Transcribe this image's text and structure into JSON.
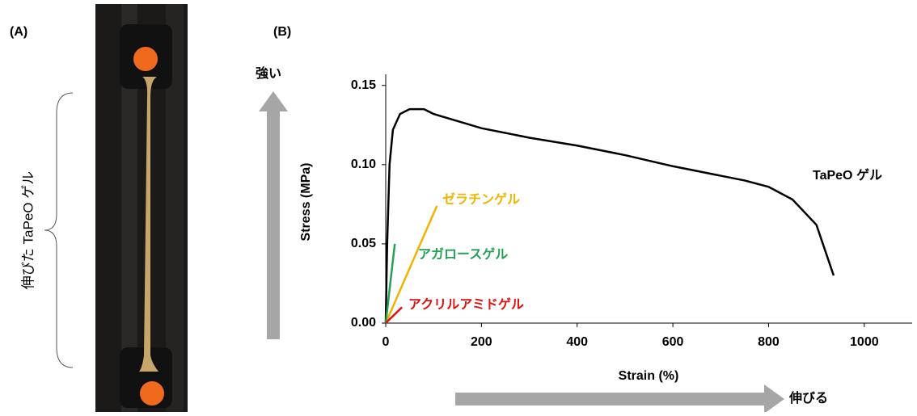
{
  "panels": {
    "a": "(A)",
    "b": "(B)"
  },
  "photo_label": "伸びた TaPeO ゲル",
  "chart_data": {
    "type": "line",
    "xlabel": "Strain (%)",
    "ylabel": "Stress (MPa)",
    "xlim": [
      0,
      1100
    ],
    "ylim": [
      0,
      0.157
    ],
    "xticks": [
      0,
      200,
      400,
      600,
      800,
      1000
    ],
    "yticks": [
      {
        "value": 0,
        "label": "0.00"
      },
      {
        "value": 0.05,
        "label": "0.05"
      },
      {
        "value": 0.1,
        "label": "0.10"
      },
      {
        "value": 0.15,
        "label": "0.15"
      }
    ],
    "annotations": {
      "up_arrow": "強い",
      "right_arrow": "伸びる"
    },
    "series": [
      {
        "name": "TaPeO ゲル",
        "color": "#000000",
        "x": [
          0,
          3,
          8,
          15,
          30,
          50,
          80,
          100,
          200,
          300,
          400,
          500,
          600,
          700,
          750,
          800,
          850,
          900,
          936
        ],
        "values": [
          0,
          0.05,
          0.1,
          0.122,
          0.132,
          0.135,
          0.135,
          0.132,
          0.123,
          0.117,
          0.112,
          0.106,
          0.099,
          0.093,
          0.09,
          0.086,
          0.078,
          0.062,
          0.03
        ]
      },
      {
        "name": "ゼラチンゲル",
        "color": "#f0b400",
        "x": [
          0,
          107
        ],
        "values": [
          0,
          0.074
        ]
      },
      {
        "name": "アガロースゲル",
        "color": "#22a055",
        "x": [
          0,
          19
        ],
        "values": [
          0,
          0.05
        ]
      },
      {
        "name": "アクリルアミドゲル",
        "color": "#e01010",
        "x": [
          0,
          34
        ],
        "values": [
          0,
          0.01
        ]
      }
    ]
  }
}
